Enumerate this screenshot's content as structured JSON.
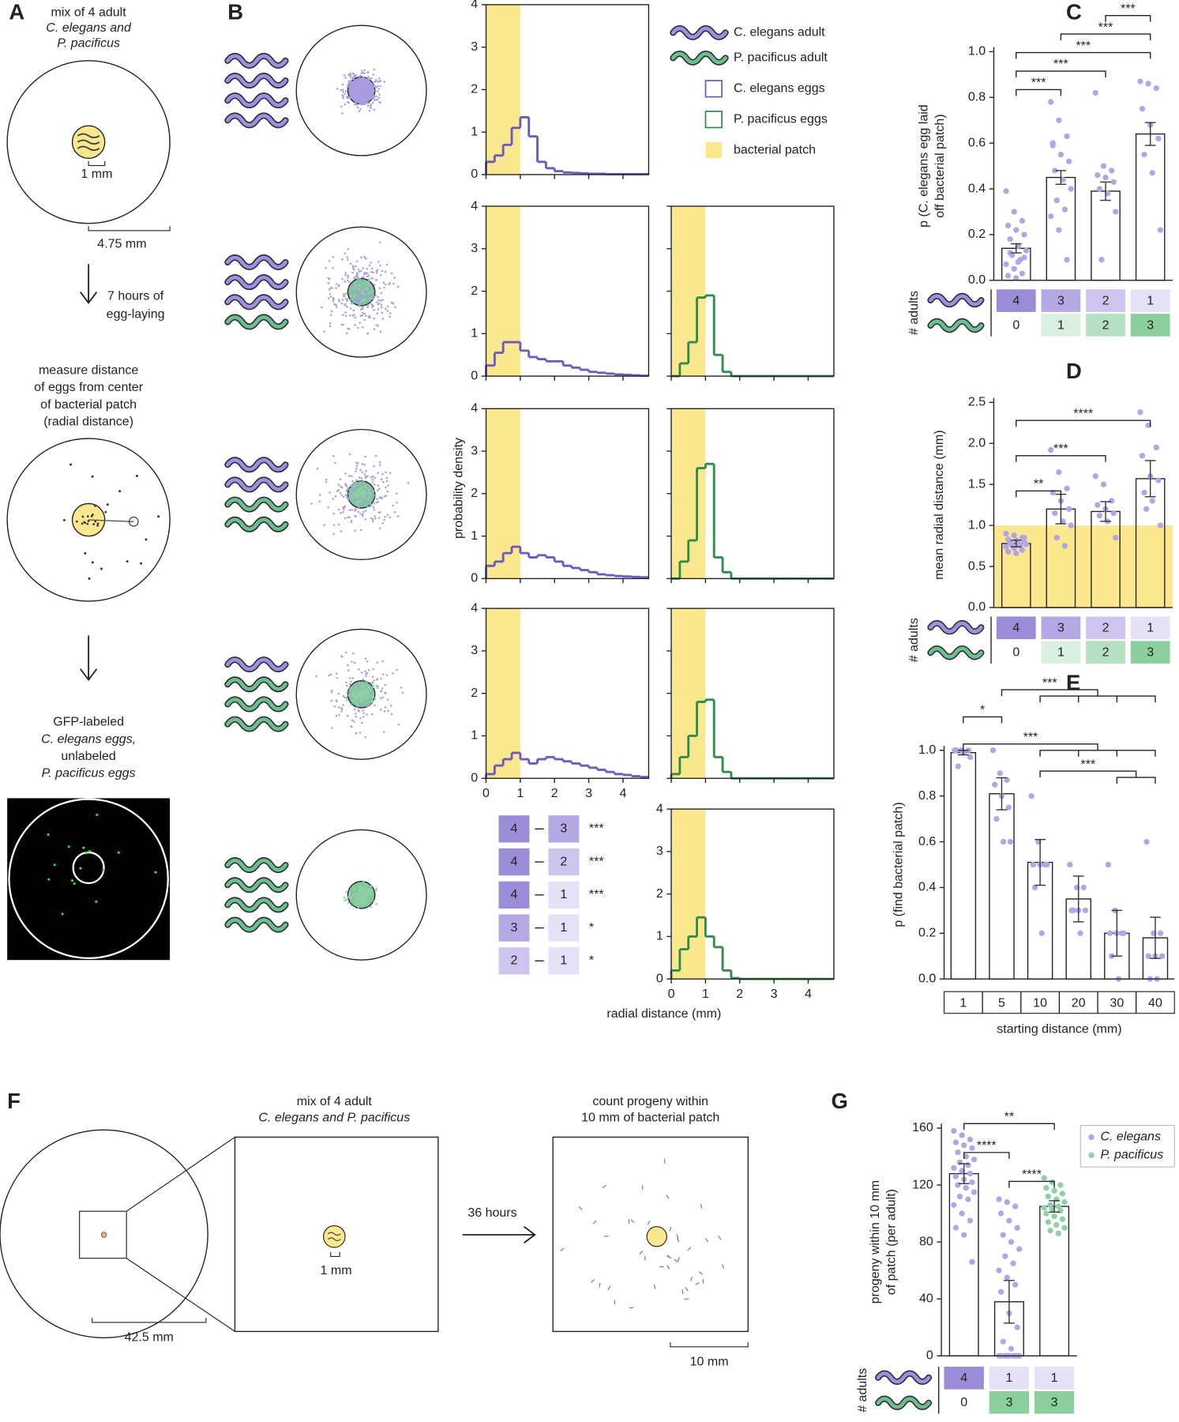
{
  "panel_labels": [
    "A",
    "B",
    "C",
    "D",
    "E",
    "F",
    "G"
  ],
  "panel_a": {
    "title": [
      "mix of 4 adult",
      "C. elegans and",
      "P. pacificus"
    ],
    "patch_scale": "1 mm",
    "dish_scale": "4.75 mm",
    "step1": [
      "7 hours of",
      "egg-laying"
    ],
    "step2": [
      "measure distance",
      "of eggs from center",
      "of bacterial patch",
      "(radial distance)"
    ],
    "step3": [
      "GFP-labeled",
      "C. elegans eggs,",
      "unlabeled",
      "P. pacificus eggs"
    ]
  },
  "panel_f": {
    "title": [
      "mix of 4 adult",
      "C. elegans and P. pacificus"
    ],
    "patch_scale": "1 mm",
    "dish_scale": "42.5 mm",
    "step": "36 hours",
    "count": [
      "count progeny within",
      "10 mm of bacterial patch"
    ],
    "field_scale": "10 mm"
  },
  "chart_data": [
    {
      "type": "histogram",
      "xlabel": "radial distance (mm)",
      "ylabel": "probability density",
      "bins": [
        0,
        0.25,
        0.5,
        0.75,
        1,
        1.25,
        1.5,
        1.75,
        2,
        2.25,
        2.5,
        2.75,
        3,
        3.25,
        3.5,
        3.75,
        4,
        4.25,
        4.5,
        4.75
      ],
      "xlim": [
        0,
        4.75
      ],
      "xticks": [
        0,
        1,
        2,
        3,
        4
      ],
      "ylim": [
        0,
        4
      ],
      "yticks": [
        0,
        1,
        2,
        3,
        4
      ],
      "patch": 1,
      "legend": [
        {
          "name": "C. elegans adult",
          "color": "#9d90dc"
        },
        {
          "name": "P. pacificus adult",
          "color": "#6cbf8a"
        },
        {
          "name": "C. elegans eggs",
          "color": "#6a5bbf"
        },
        {
          "name": "P. pacificus eggs",
          "color": "#2e8b4e"
        },
        {
          "name": "bacterial patch",
          "color": "#fbe88e"
        }
      ],
      "rows": [
        {
          "adults": [
            4,
            0
          ],
          "ce": [
            0.3,
            0.45,
            0.7,
            1.1,
            1.35,
            0.9,
            0.3,
            0.15,
            0.08,
            0.05,
            0.04,
            0.03,
            0.02,
            0.02,
            0.01,
            0.01,
            0.01,
            0.01,
            0.01
          ],
          "pp": null
        },
        {
          "adults": [
            3,
            1
          ],
          "ce": [
            0.25,
            0.55,
            0.8,
            0.8,
            0.6,
            0.45,
            0.4,
            0.35,
            0.35,
            0.25,
            0.2,
            0.15,
            0.1,
            0.08,
            0.06,
            0.04,
            0.03,
            0.02,
            0.01
          ],
          "pp": [
            0,
            0.3,
            0.8,
            1.85,
            1.9,
            0.5,
            0.1,
            0,
            0,
            0,
            0,
            0,
            0,
            0,
            0,
            0,
            0,
            0,
            0
          ]
        },
        {
          "adults": [
            2,
            2
          ],
          "ce": [
            0.3,
            0.4,
            0.6,
            0.75,
            0.6,
            0.5,
            0.55,
            0.5,
            0.4,
            0.3,
            0.25,
            0.2,
            0.15,
            0.1,
            0.08,
            0.06,
            0.05,
            0.04,
            0.03
          ],
          "pp": [
            0,
            0.4,
            0.9,
            2.6,
            2.7,
            0.5,
            0.15,
            0,
            0,
            0,
            0,
            0,
            0,
            0,
            0,
            0,
            0,
            0,
            0
          ]
        },
        {
          "adults": [
            1,
            3
          ],
          "ce": [
            0.1,
            0.3,
            0.45,
            0.6,
            0.45,
            0.35,
            0.45,
            0.5,
            0.45,
            0.4,
            0.35,
            0.3,
            0.25,
            0.2,
            0.15,
            0.1,
            0.08,
            0.05,
            0.03
          ],
          "pp": [
            0.1,
            0.5,
            1.0,
            1.8,
            1.85,
            0.5,
            0.15,
            0,
            0,
            0,
            0,
            0,
            0,
            0,
            0,
            0,
            0,
            0,
            0
          ]
        },
        {
          "adults": [
            0,
            4
          ],
          "ce": null,
          "pp": [
            0.2,
            0.7,
            1.0,
            1.45,
            1.0,
            0.75,
            0.2,
            0.02,
            0,
            0,
            0,
            0,
            0,
            0,
            0,
            0,
            0,
            0,
            0
          ]
        }
      ],
      "pairwise": [
        {
          "a": 4,
          "b": 3,
          "label": "***"
        },
        {
          "a": 4,
          "b": 2,
          "label": "***"
        },
        {
          "a": 4,
          "b": 1,
          "label": "***"
        },
        {
          "a": 3,
          "b": 1,
          "label": "*"
        },
        {
          "a": 2,
          "b": 1,
          "label": "*"
        }
      ]
    },
    {
      "type": "bar",
      "ylabel": [
        "p (C. elegans egg laid",
        "off bacterial patch)"
      ],
      "values": [
        0.14,
        0.45,
        0.39,
        0.64
      ],
      "errors": [
        0.02,
        0.03,
        0.04,
        0.05
      ],
      "points": [
        [
          0.39,
          0.3,
          0.26,
          0.24,
          0.22,
          0.2,
          0.18,
          0.15,
          0.13,
          0.11,
          0.09,
          0.07,
          0.05,
          0.03,
          0.02,
          0.01,
          0.1,
          0.12,
          0.08
        ],
        [
          0.78,
          0.7,
          0.63,
          0.59,
          0.55,
          0.52,
          0.48,
          0.44,
          0.4,
          0.35,
          0.31,
          0.28,
          0.22,
          0.09,
          0.6
        ],
        [
          0.82,
          0.5,
          0.48,
          0.46,
          0.45,
          0.43,
          0.4,
          0.38,
          0.3,
          0.09
        ],
        [
          0.87,
          0.86,
          0.84,
          0.75,
          0.68,
          0.62,
          0.55,
          0.47,
          0.22
        ]
      ],
      "point_color": "#b3a6e6",
      "ylim": [
        0,
        1.0
      ],
      "yticks": [
        {
          "value": 0,
          "label": "0.0"
        },
        0.2,
        0.4,
        0.6,
        0.8,
        {
          "value": 1,
          "label": "1.0"
        }
      ],
      "comparisons": [
        {
          "from": 2,
          "to": [
            3
          ],
          "label": "***"
        },
        {
          "from": 1,
          "to": [
            3
          ],
          "label": "***"
        },
        {
          "from": 0,
          "to": [
            3
          ],
          "label": "***"
        },
        {
          "from": 0,
          "to": [
            2
          ],
          "label": "***"
        },
        {
          "from": 0,
          "to": [
            1
          ],
          "label": "***"
        }
      ],
      "adults_label": "# adults",
      "adults": {
        "ce": [
          4,
          3,
          2,
          1
        ],
        "pp": [
          0,
          1,
          2,
          3
        ]
      }
    },
    {
      "type": "bar",
      "ylabel": [
        "mean radial distance (mm)"
      ],
      "values": [
        0.78,
        1.2,
        1.17,
        1.57
      ],
      "errors": [
        0.04,
        0.18,
        0.12,
        0.22
      ],
      "points": [
        [
          0.9,
          0.88,
          0.85,
          0.83,
          0.82,
          0.8,
          0.79,
          0.78,
          0.77,
          0.76,
          0.75,
          0.74,
          0.72,
          0.7,
          0.68,
          0.66,
          0.85,
          0.8
        ],
        [
          1.92,
          1.65,
          1.45,
          1.4,
          1.3,
          1.2,
          1.15,
          1.05,
          1.0,
          0.85,
          0.75
        ],
        [
          1.6,
          1.5,
          1.3,
          1.25,
          1.2,
          1.15,
          1.12,
          1.05,
          0.85
        ],
        [
          2.38,
          2.22,
          1.95,
          1.85,
          1.6,
          1.55,
          1.4,
          1.3,
          1.0,
          1.2
        ]
      ],
      "point_color": "#b3a6e6",
      "patch": 1.0,
      "patch_color": "#fbe88e",
      "ylim": [
        0,
        2.5
      ],
      "yticks": [
        {
          "value": 0,
          "label": "0.0"
        },
        0.5,
        {
          "value": 1,
          "label": "1.0"
        },
        1.5,
        {
          "value": 2,
          "label": "2.0"
        },
        2.5
      ],
      "comparisons": [
        {
          "from": 0,
          "to": [
            3
          ],
          "label": "****"
        },
        {
          "from": 0,
          "to": [
            2
          ],
          "label": "***"
        },
        {
          "from": 0,
          "to": [
            1
          ],
          "label": "**"
        }
      ],
      "adults_label": "# adults",
      "adults": {
        "ce": [
          4,
          3,
          2,
          1
        ],
        "pp": [
          0,
          1,
          2,
          3
        ]
      }
    },
    {
      "type": "bar",
      "ylabel": [
        "p (find bacterial patch)"
      ],
      "xlabel": "starting distance (mm)",
      "categories": [
        "1",
        "5",
        "10",
        "20",
        "30",
        "40"
      ],
      "values": [
        0.99,
        0.81,
        0.51,
        0.35,
        0.2,
        0.18
      ],
      "errors": [
        0.01,
        0.07,
        0.1,
        0.1,
        0.1,
        0.09
      ],
      "points": [
        [
          1.0,
          1.0,
          1.0,
          1.0,
          0.99,
          0.97,
          0.93
        ],
        [
          1.0,
          0.9,
          0.87,
          0.85,
          0.8,
          0.75,
          0.7,
          0.6,
          0.6
        ],
        [
          0.8,
          0.6,
          0.5,
          0.5,
          0.5,
          0.5,
          0.4,
          0.2
        ],
        [
          0.5,
          0.4,
          0.4,
          0.3,
          0.3,
          0.3,
          0.3,
          0.2
        ],
        [
          0.5,
          0.3,
          0.2,
          0.2,
          0.2,
          0.2,
          0.1,
          0
        ],
        [
          0.6,
          0.2,
          0.2,
          0.1,
          0.1,
          0.1,
          0,
          0
        ]
      ],
      "point_color": "#b3a6e6",
      "ylim": [
        0,
        1.0
      ],
      "yticks": [
        {
          "value": 0,
          "label": "0.0"
        },
        0.2,
        0.4,
        0.6,
        0.8,
        {
          "value": 1,
          "label": "1.0"
        }
      ],
      "comparisons": [
        {
          "from": 1,
          "to": [
            2,
            3,
            4,
            5
          ],
          "label": "***"
        },
        {
          "from": 0,
          "to": [
            1
          ],
          "label": "*"
        },
        {
          "from": 0,
          "to": [
            2,
            3,
            4,
            5
          ],
          "label": "***"
        },
        {
          "from": 2,
          "to": [
            4,
            5
          ],
          "label": "***"
        }
      ]
    },
    {
      "type": "bar",
      "ylabel": [
        "progeny within 10 mm",
        "of patch (per adult)"
      ],
      "series": [
        {
          "name": "C. elegans",
          "color": "#b3a6e6"
        },
        {
          "name": "P. pacificus",
          "color": "#8fd1a4"
        }
      ],
      "point_series": [
        0,
        0,
        1
      ],
      "values": [
        128,
        38,
        105
      ],
      "errors": [
        7,
        15,
        4
      ],
      "points": [
        [
          158,
          155,
          152,
          150,
          148,
          146,
          143,
          140,
          138,
          136,
          134,
          132,
          130,
          128,
          126,
          124,
          122,
          120,
          118,
          115,
          112,
          110,
          106,
          100,
          95,
          90,
          85,
          66
        ],
        [
          110,
          108,
          105,
          100,
          95,
          90,
          85,
          80,
          75,
          70,
          65,
          60,
          55,
          50,
          45,
          30,
          20,
          10,
          5,
          0,
          0,
          0,
          0,
          0,
          0,
          0,
          0,
          0
        ],
        [
          125,
          122,
          120,
          118,
          116,
          114,
          112,
          110,
          108,
          106,
          105,
          104,
          103,
          102,
          100,
          98,
          96,
          94,
          92,
          90,
          88,
          86
        ]
      ],
      "ylim": [
        0,
        160
      ],
      "yticks": [
        0,
        40,
        80,
        120,
        160
      ],
      "comparisons": [
        {
          "from": 0,
          "to": [
            2
          ],
          "label": "**"
        },
        {
          "from": 0,
          "to": [
            1
          ],
          "label": "****"
        },
        {
          "from": 1,
          "to": [
            2
          ],
          "label": "****"
        }
      ],
      "adults_label": "# adults",
      "adults": {
        "ce": [
          4,
          1,
          1
        ],
        "pp": [
          0,
          3,
          3
        ]
      }
    }
  ]
}
